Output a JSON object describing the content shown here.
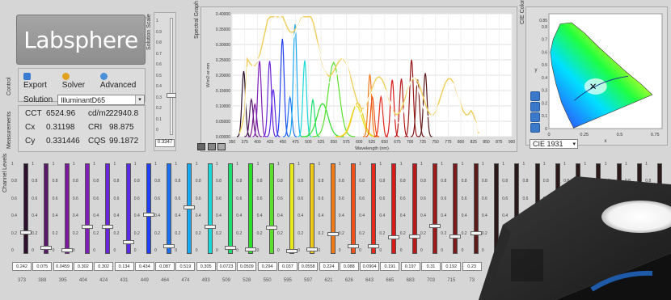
{
  "logo": {
    "text": "Labsphere"
  },
  "sections": {
    "control": "Control",
    "measurements": "Measurements",
    "solution_scale": "Solution Scale",
    "spectral_graph": "Spectral Graph",
    "cie_color": "CIE Color",
    "channel_levels": "Channel Levels"
  },
  "control": {
    "export_label": "Export",
    "solver_label": "Solver",
    "advanced_label": "Advanced",
    "solution_label": "Solution",
    "solution_value": "IlluminantD65"
  },
  "measurements": {
    "cct_label": "CCT",
    "cct_value": "6524.96",
    "cdm2_label": "cd/m2",
    "cdm2_value": "22940.8",
    "cx_label": "Cx",
    "cx_value": "0.31198",
    "cri_label": "CRI",
    "cri_value": "98.875",
    "cy_label": "Cy",
    "cy_value": "0.331446",
    "cqs_label": "CQS",
    "cqs_value": "99.1872"
  },
  "solution_scale": {
    "ticks": [
      "1",
      "0.9",
      "0.8",
      "0.7",
      "0.6",
      "0.5",
      "0.4",
      "0.3",
      "0.2",
      "0.1",
      "0"
    ],
    "value": "0.3347",
    "level": 0.3347
  },
  "spectral_graph": {
    "xlabel": "Wavelength (nm)",
    "ylabel": "W/m2-sr-nm",
    "xticks": [
      "350",
      "375",
      "400",
      "425",
      "450",
      "475",
      "500",
      "525",
      "550",
      "575",
      "600",
      "625",
      "650",
      "675",
      "700",
      "725",
      "750",
      "775",
      "800",
      "825",
      "850",
      "875",
      "900"
    ],
    "yticks": [
      "0.40000",
      "0.35000",
      "0.30000",
      "0.25000",
      "0.20000",
      "0.15000",
      "0.10000",
      "0.05000",
      "0.00000"
    ]
  },
  "cie": {
    "selector": "CIE 1931",
    "xlabel": "x",
    "ylabel": "y",
    "xticks": [
      "0",
      "0.25",
      "0.5",
      "0.75"
    ],
    "yticks": [
      "0.85",
      "0.8",
      "0.7",
      "0.6",
      "0.5",
      "0.4",
      "0.3",
      "0.2",
      "0.1",
      "0"
    ],
    "point": {
      "x": 0.312,
      "y": 0.331
    }
  },
  "channel_ticks": [
    "1",
    "0.8",
    "0.6",
    "0.4",
    "0.2",
    "0"
  ],
  "channels": [
    {
      "wl": "373",
      "value": "0.242",
      "level": 0.242,
      "color": "#2b0f2b"
    },
    {
      "wl": "388",
      "value": "0.075",
      "level": 0.075,
      "color": "#5a1a6a"
    },
    {
      "wl": "395",
      "value": "0.0459",
      "level": 0.0459,
      "color": "#7a1a9a"
    },
    {
      "wl": "404",
      "value": "0.302",
      "level": 0.302,
      "color": "#7f1fb8"
    },
    {
      "wl": "424",
      "value": "0.302",
      "level": 0.302,
      "color": "#6a25d8"
    },
    {
      "wl": "431",
      "value": "0.134",
      "level": 0.134,
      "color": "#5a2ae8"
    },
    {
      "wl": "449",
      "value": "0.434",
      "level": 0.434,
      "color": "#2040f0"
    },
    {
      "wl": "464",
      "value": "0.087",
      "level": 0.087,
      "color": "#1a70f0"
    },
    {
      "wl": "474",
      "value": "0.519",
      "level": 0.519,
      "color": "#1aa8f0"
    },
    {
      "wl": "493",
      "value": "0.305",
      "level": 0.305,
      "color": "#1ad8d8"
    },
    {
      "wl": "509",
      "value": "0.0723",
      "level": 0.0723,
      "color": "#1ae070"
    },
    {
      "wl": "528",
      "value": "0.0509",
      "level": 0.0509,
      "color": "#2ae02a"
    },
    {
      "wl": "550",
      "value": "0.294",
      "level": 0.294,
      "color": "#5ae02a"
    },
    {
      "wl": "595",
      "value": "0.037",
      "level": 0.037,
      "color": "#e8e81a"
    },
    {
      "wl": "597",
      "value": "0.0558",
      "level": 0.0558,
      "color": "#f0c81a"
    },
    {
      "wl": "621",
      "value": "0.224",
      "level": 0.224,
      "color": "#f07a1a"
    },
    {
      "wl": "626",
      "value": "0.088",
      "level": 0.088,
      "color": "#f0501a"
    },
    {
      "wl": "643",
      "value": "0.0904",
      "level": 0.0904,
      "color": "#e82a1a"
    },
    {
      "wl": "665",
      "value": "0.191",
      "level": 0.191,
      "color": "#d81a1a"
    },
    {
      "wl": "683",
      "value": "0.197",
      "level": 0.197,
      "color": "#b81a1a"
    },
    {
      "wl": "703",
      "value": "0.31",
      "level": 0.31,
      "color": "#9a1a1a"
    },
    {
      "wl": "715",
      "value": "0.192",
      "level": 0.192,
      "color": "#7a1a1a"
    },
    {
      "wl": "73",
      "value": "0.23",
      "level": 0.23,
      "color": "#5a1a1a"
    }
  ]
}
